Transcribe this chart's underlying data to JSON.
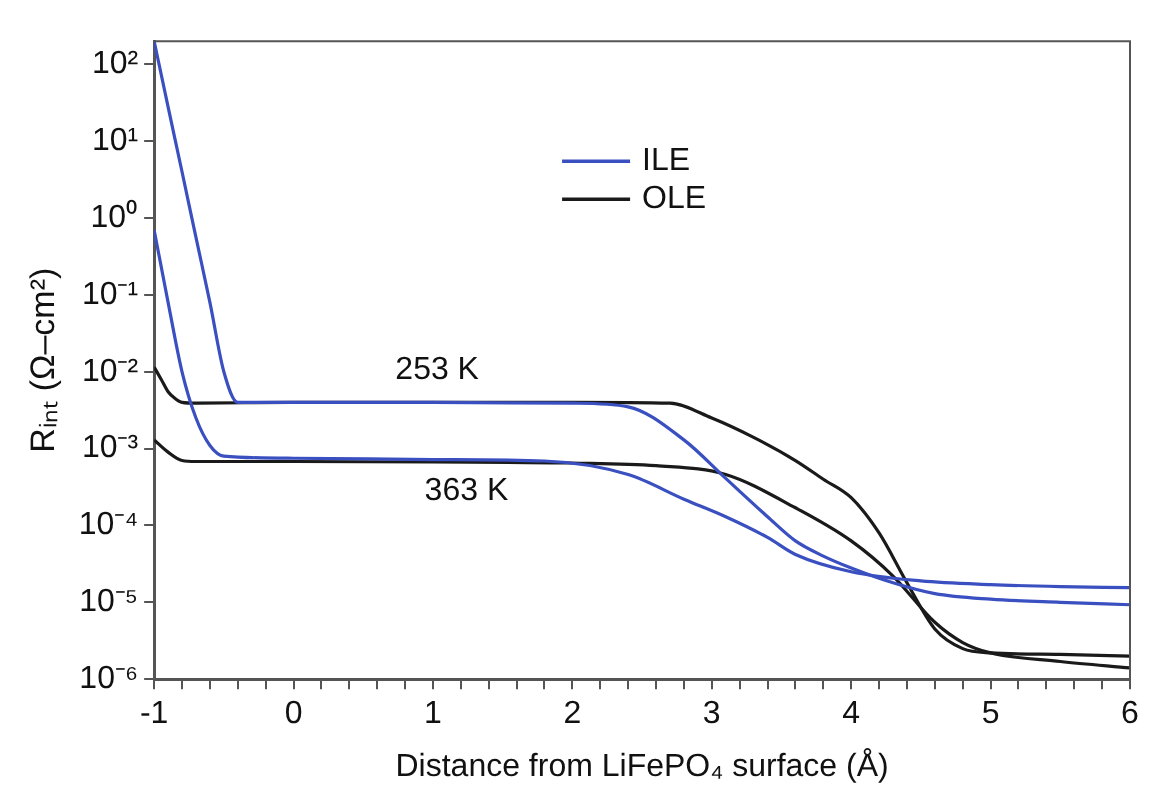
{
  "chart_data": {
    "type": "line",
    "xlabel": "Distance from LiFePO₄ surface (Å)",
    "ylabel": "Rᵢₙₜ (Ω–cm²)",
    "log": "y",
    "grid": false,
    "legend": "top",
    "marker": "none",
    "line_style": "solid",
    "xlim": [
      -1,
      6
    ],
    "xticks": [
      -1,
      {
        "value": -0.8,
        "label": null
      },
      {
        "value": -0.6,
        "label": null
      },
      {
        "value": -0.4,
        "label": null
      },
      {
        "value": -0.2,
        "label": null
      },
      0,
      {
        "value": 0.2,
        "label": null
      },
      {
        "value": 0.4,
        "label": null
      },
      {
        "value": 0.6,
        "label": null
      },
      {
        "value": 0.8,
        "label": null
      },
      1,
      {
        "value": 1.2,
        "label": null
      },
      {
        "value": 1.4,
        "label": null
      },
      {
        "value": 1.6,
        "label": null
      },
      {
        "value": 1.8,
        "label": null
      },
      2,
      {
        "value": 2.2,
        "label": null
      },
      {
        "value": 2.4,
        "label": null
      },
      {
        "value": 2.6,
        "label": null
      },
      {
        "value": 2.8,
        "label": null
      },
      3,
      {
        "value": 3.2,
        "label": null
      },
      {
        "value": 3.4,
        "label": null
      },
      {
        "value": 3.6,
        "label": null
      },
      {
        "value": 3.8,
        "label": null
      },
      4,
      {
        "value": 4.2,
        "label": null
      },
      {
        "value": 4.4,
        "label": null
      },
      {
        "value": 4.6,
        "label": null
      },
      {
        "value": 4.8,
        "label": null
      },
      5,
      {
        "value": 5.2,
        "label": null
      },
      {
        "value": 5.4,
        "label": null
      },
      {
        "value": 5.6,
        "label": null
      },
      {
        "value": 5.8,
        "label": null
      },
      6
    ],
    "ylim": [
      1e-06,
      200
    ],
    "yticks": [
      {
        "value": 1e-06,
        "label": "10⁻⁶"
      },
      {
        "value": 1e-05,
        "label": "10⁻⁵"
      },
      {
        "value": 0.0001,
        "label": "10⁻⁴"
      },
      {
        "value": 0.001,
        "label": "10⁻³"
      },
      {
        "value": 0.01,
        "label": "10⁻²"
      },
      {
        "value": 0.1,
        "label": "10⁻¹"
      },
      {
        "value": 1,
        "label": "10⁰"
      },
      {
        "value": 10,
        "label": "10¹"
      },
      {
        "value": 100,
        "label": "10²"
      }
    ],
    "annotations": [
      "253 K",
      "363 K"
    ],
    "series": [
      {
        "name": "ILE",
        "color": "#3a4fc0",
        "x": [
          -1,
          -0.9,
          -0.8,
          -0.7,
          -0.6,
          -0.5,
          -0.4,
          0,
          1,
          2,
          2.4,
          2.8,
          3.1,
          3.4,
          3.6,
          3.8,
          4,
          4.3,
          4.6,
          5,
          5.5,
          6
        ],
        "values": [
          200,
          28,
          4,
          0.56,
          0.08,
          0.01,
          0.004,
          0.004,
          0.004,
          0.0039,
          0.0035,
          0.0013,
          0.00041,
          0.00013,
          6.3e-05,
          4e-05,
          2.8e-05,
          1.8e-05,
          1.3e-05,
          1.1e-05,
          1e-05,
          9.3e-06
        ]
      },
      {
        "color": "#3a4fc0",
        "x": [
          -1,
          -0.9,
          -0.8,
          -0.7,
          -0.6,
          -0.5,
          0,
          1,
          1.8,
          2.4,
          2.8,
          3.1,
          3.4,
          3.6,
          4,
          4.5,
          5,
          5.5,
          6
        ],
        "values": [
          0.7,
          0.08,
          0.01,
          0.0025,
          0.0011,
          0.0008,
          0.00075,
          0.00072,
          0.00069,
          0.00046,
          0.00022,
          0.00013,
          7e-05,
          4.2e-05,
          2.5e-05,
          1.9e-05,
          1.7e-05,
          1.6e-05,
          1.55e-05
        ]
      },
      {
        "name": "OLE",
        "color": "#1a1a1a",
        "x": [
          -1,
          -0.95,
          -0.9,
          -0.85,
          -0.8,
          -0.7,
          0,
          1,
          2,
          2.7,
          3,
          3.3,
          3.6,
          3.8,
          4,
          4.2,
          4.4,
          4.6,
          4.8,
          5,
          5.5,
          6
        ],
        "values": [
          0.0115,
          0.008,
          0.0055,
          0.0045,
          0.004,
          0.0039,
          0.004,
          0.004,
          0.004,
          0.0039,
          0.0025,
          0.0014,
          0.0007,
          0.0004,
          0.00023,
          8e-05,
          1.8e-05,
          4.5e-06,
          2.5e-06,
          2.2e-06,
          2.1e-06,
          2e-06
        ]
      },
      {
        "color": "#1a1a1a",
        "x": [
          -1,
          -0.9,
          -0.8,
          -0.7,
          0,
          1,
          2,
          2.6,
          3.1,
          3.6,
          4,
          4.3,
          4.6,
          4.8,
          5,
          5.5,
          6
        ],
        "values": [
          0.0013,
          0.0009,
          0.0007,
          0.00068,
          0.00068,
          0.00067,
          0.00065,
          0.0006,
          0.00046,
          0.00017,
          6.3e-05,
          2.2e-05,
          5.5e-06,
          3e-06,
          2.2e-06,
          1.7e-06,
          1.4e-06
        ]
      }
    ]
  }
}
